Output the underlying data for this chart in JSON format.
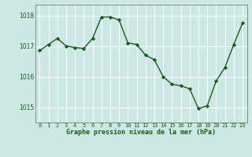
{
  "x": [
    0,
    1,
    2,
    3,
    4,
    5,
    6,
    7,
    8,
    9,
    10,
    11,
    12,
    13,
    14,
    15,
    16,
    17,
    18,
    19,
    20,
    21,
    22,
    23
  ],
  "y": [
    1016.85,
    1017.05,
    1017.25,
    1017.0,
    1016.95,
    1016.92,
    1017.25,
    1017.95,
    1017.95,
    1017.85,
    1017.1,
    1017.05,
    1016.7,
    1016.55,
    1016.0,
    1015.75,
    1015.7,
    1015.6,
    1014.95,
    1015.05,
    1015.85,
    1016.3,
    1017.05,
    1017.75
  ],
  "line_color": "#1a5c1a",
  "marker_color": "#1a5c1a",
  "bg_color": "#cce8e4",
  "grid_color": "#ffffff",
  "xlabel": "Graphe pression niveau de la mer (hPa)",
  "xlabel_color": "#1a5c1a",
  "tick_color": "#1a5c1a",
  "yticks": [
    1015,
    1016,
    1017,
    1018
  ],
  "ylim": [
    1014.5,
    1018.35
  ],
  "xlim": [
    -0.5,
    23.5
  ],
  "xticks": [
    0,
    1,
    2,
    3,
    4,
    5,
    6,
    7,
    8,
    9,
    10,
    11,
    12,
    13,
    14,
    15,
    16,
    17,
    18,
    19,
    20,
    21,
    22,
    23
  ]
}
